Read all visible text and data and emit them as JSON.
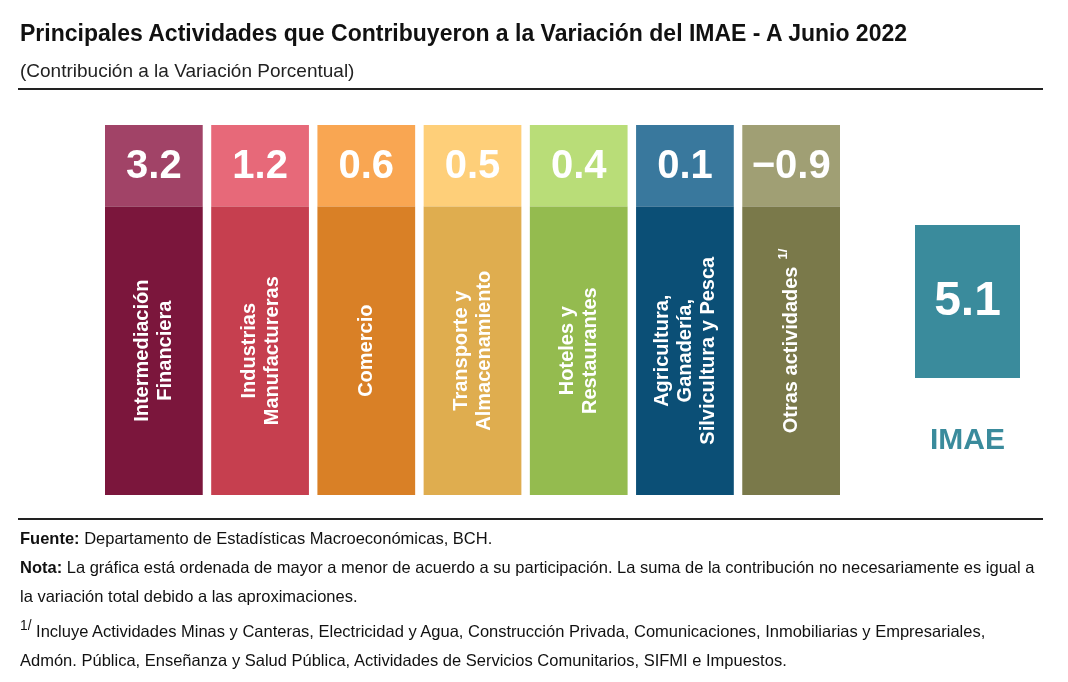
{
  "chart_data": [
    {
      "type": "other",
      "title": "Principales Actividades que Contribuyeron a la Variación del IMAE - A Junio 2022",
      "subtitle": "(Contribución a la Variación Porcentual)",
      "categories": [
        "Intermediación\nFinanciera",
        "Industrias\nManufactureras",
        "Comercio",
        "Transporte y\nAlmacenamiento",
        "Hoteles y\nRestaurantes",
        "Agricultura,\nGanadería,\nSilvicultura y Pesca",
        "Otras actividades $^{1/}$"
      ],
      "values": [
        3.2,
        1.2,
        0.6,
        0.5,
        0.4,
        0.1,
        -0.9
      ],
      "colors": [
        "#8c1a45",
        "#e2485b",
        "#f8922c",
        "#fec55b",
        "#a9d55a",
        "#0d5a87",
        "#8b8a55"
      ],
      "data_labels": true,
      "annotations": [
        "Fuente: Departamento de Estadísticas Macroeconómicas, BCH.",
        "Nota: La gráfica está ordenada de mayor a menor de acuerdo a su participación. La suma de la contribución no necesariamente es igual a la variación total debido a las aproximaciones.",
        "$^{1/}$ Incluye Actividades Minas y Canteras, Electricidad y Agua, Construcción Privada, Comunicaciones, Inmobiliarias y Empresariales, Admón. Pública, Enseñanza y Salud Pública, Actividades de Servicios Comunitarios, SIFMI e Impuestos."
      ]
    },
    {
      "type": "other",
      "categories": [
        "IMAE"
      ],
      "values": [
        5.1
      ],
      "colors": [
        "#3a8b9c"
      ],
      "data_labels": true
    }
  ]
}
